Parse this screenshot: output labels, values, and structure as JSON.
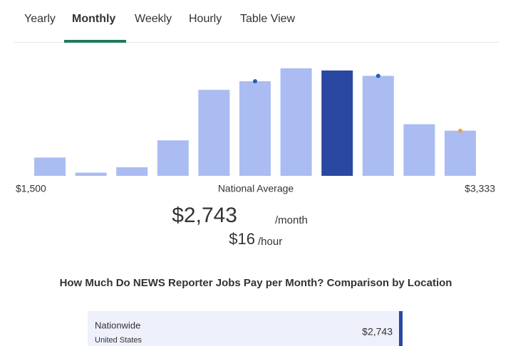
{
  "tabs": [
    "Yearly",
    "Monthly",
    "Weekly",
    "Hourly",
    "Table View"
  ],
  "chart_data": {
    "type": "bar",
    "values": [
      17,
      3,
      8,
      33,
      80,
      88,
      100,
      98,
      93,
      48,
      42
    ],
    "colors": [
      "#aabcf1",
      "#aabcf1",
      "#aabcf1",
      "#aabcf1",
      "#aabcf1",
      "#aabcf1",
      "#aabcf1",
      "#2a48a1",
      "#aabcf1",
      "#aabcf1",
      "#aabcf1"
    ],
    "dot_colors": [
      null,
      null,
      null,
      null,
      null,
      "#2a5fb8",
      null,
      null,
      "#2a5fb8",
      null,
      "#f0a24a"
    ],
    "xlim": [
      1500,
      3333
    ],
    "xticks": [
      {
        "value": 1500,
        "label": "$1,500"
      },
      {
        "value": 3333,
        "label": "$3,333"
      }
    ],
    "annotation": "National Average"
  },
  "summary": {
    "monthly": "$2,743",
    "monthly_unit": "/month",
    "hourly": "$16",
    "hourly_unit": "/hour"
  },
  "section_title": "How Much Do NEWS Reporter Jobs Pay per Month? Comparison by Location",
  "location_row": {
    "name": "Nationwide",
    "country": "United States",
    "pay": "$2,743"
  }
}
